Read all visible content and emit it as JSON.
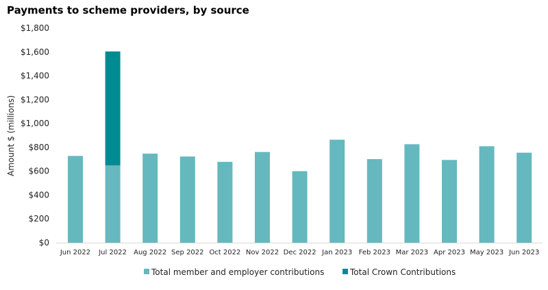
{
  "chart_data": {
    "type": "bar",
    "stacked": true,
    "title": "Payments to scheme providers, by source",
    "xlabel": "",
    "ylabel": "Amount $ (millions)",
    "ylim": [
      0,
      1800
    ],
    "yticks": [
      "$0",
      "$200",
      "$400",
      "$600",
      "$800",
      "$1,000",
      "$1,200",
      "$1,400",
      "$1,600",
      "$1,800"
    ],
    "grid": false,
    "legend_position": "bottom",
    "categories": [
      "Jun 2022",
      "Jul 2022",
      "Aug 2022",
      "Sep 2022",
      "Oct 2022",
      "Nov 2022",
      "Dec 2022",
      "Jan 2023",
      "Feb 2023",
      "Mar 2023",
      "Apr 2023",
      "May 2023",
      "Jun 2023"
    ],
    "series": [
      {
        "name": "Total member and employer contributions",
        "color": "#66b8bf",
        "values": [
          728,
          648,
          747,
          723,
          678,
          761,
          600,
          864,
          701,
          826,
          694,
          809,
          755
        ]
      },
      {
        "name": "Total Crown Contributions",
        "color": "#008b92",
        "values": [
          0,
          956,
          0,
          0,
          0,
          0,
          0,
          0,
          0,
          0,
          0,
          0,
          0
        ]
      }
    ]
  }
}
